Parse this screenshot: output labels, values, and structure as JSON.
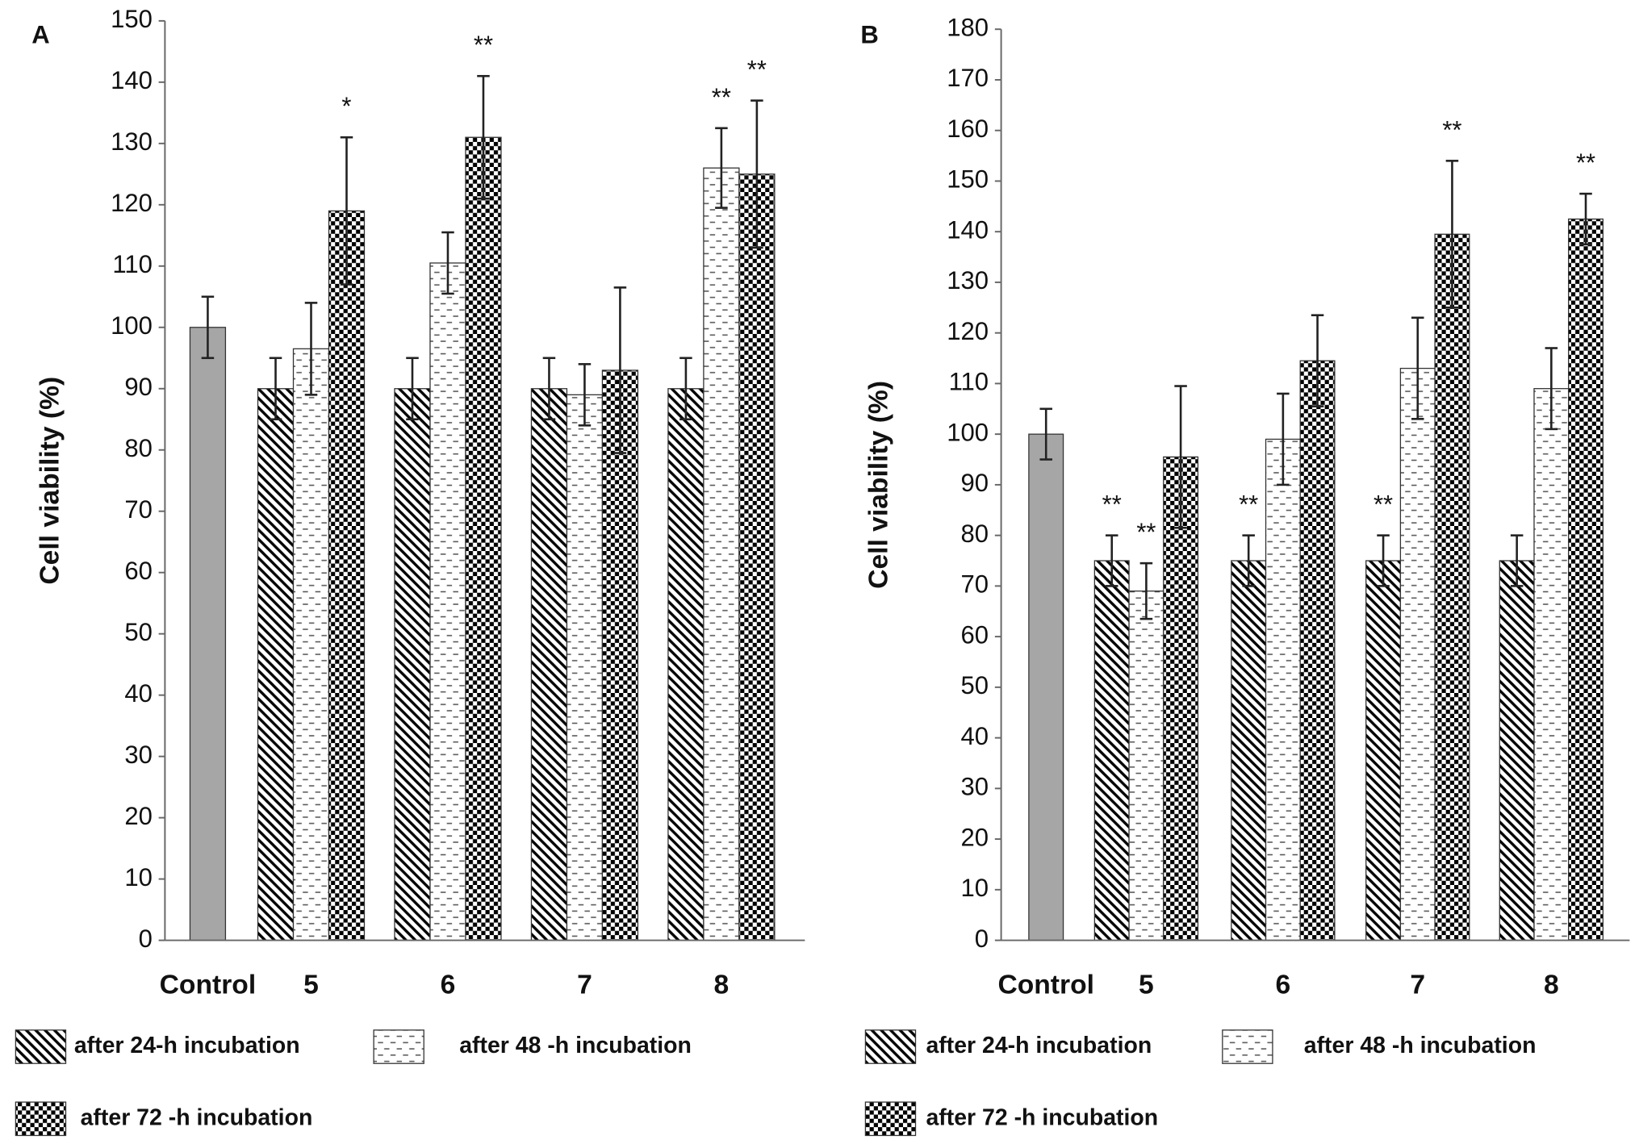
{
  "chart_data": [
    {
      "type": "bar",
      "panel": "A",
      "ylabel": "Cell viability (%)",
      "categories": [
        "Control",
        "5",
        "6",
        "7",
        "8"
      ],
      "ylim": [
        0,
        150
      ],
      "yticks": [
        0,
        10,
        20,
        30,
        40,
        50,
        60,
        70,
        80,
        90,
        100,
        110,
        120,
        130,
        140,
        150
      ],
      "series": [
        {
          "color": "#a6a6a6",
          "fill": "solid",
          "values": [
            100,
            null,
            null,
            null,
            null
          ],
          "errors": [
            5,
            null,
            null,
            null,
            null
          ],
          "annotations": [
            null,
            null,
            null,
            null,
            null
          ]
        },
        {
          "name": "after 24-h incubation",
          "color": "#000000",
          "fill": "diagonal",
          "values": [
            null,
            90,
            90,
            90,
            90
          ],
          "errors": [
            null,
            5,
            5,
            5,
            5
          ],
          "annotations": [
            null,
            null,
            null,
            null,
            null
          ]
        },
        {
          "name": "after 48 -h incubation",
          "color": "#555555",
          "fill": "dash",
          "values": [
            null,
            96.5,
            110.5,
            89,
            126
          ],
          "errors": [
            null,
            7.5,
            5,
            5,
            6.5
          ],
          "annotations": [
            null,
            null,
            null,
            null,
            "**"
          ]
        },
        {
          "name": "after 72 -h incubation",
          "color": "#000000",
          "fill": "checker",
          "values": [
            null,
            119,
            131,
            93,
            125
          ],
          "errors": [
            null,
            12,
            10,
            13.5,
            12
          ],
          "annotations": [
            null,
            "*",
            "**",
            null,
            "**"
          ]
        }
      ]
    },
    {
      "type": "bar",
      "panel": "B",
      "ylabel": "Cell viability (%)",
      "categories": [
        "Control",
        "5",
        "6",
        "7",
        "8"
      ],
      "ylim": [
        0,
        180
      ],
      "yticks": [
        0,
        10,
        20,
        30,
        40,
        50,
        60,
        70,
        80,
        90,
        100,
        110,
        120,
        130,
        140,
        150,
        160,
        170,
        180
      ],
      "series": [
        {
          "color": "#a6a6a6",
          "fill": "solid",
          "values": [
            100,
            null,
            null,
            null,
            null
          ],
          "errors": [
            5,
            null,
            null,
            null,
            null
          ],
          "annotations": [
            null,
            null,
            null,
            null,
            null
          ]
        },
        {
          "name": "after 24-h incubation",
          "color": "#000000",
          "fill": "diagonal",
          "values": [
            null,
            75,
            75,
            75,
            75
          ],
          "errors": [
            null,
            5,
            5,
            5,
            5
          ],
          "annotations": [
            null,
            "**",
            "**",
            "**",
            null
          ]
        },
        {
          "name": "after 48 -h incubation",
          "color": "#555555",
          "fill": "dash",
          "values": [
            null,
            69,
            99,
            113,
            109
          ],
          "errors": [
            null,
            5.5,
            9,
            10,
            8
          ],
          "annotations": [
            null,
            "**",
            null,
            null,
            null
          ]
        },
        {
          "name": "after 72 -h incubation",
          "color": "#000000",
          "fill": "checker",
          "values": [
            null,
            95.5,
            114.5,
            139.5,
            142.5
          ],
          "errors": [
            null,
            14,
            9,
            14.5,
            5
          ],
          "annotations": [
            null,
            null,
            null,
            "**",
            "**"
          ]
        }
      ]
    }
  ]
}
